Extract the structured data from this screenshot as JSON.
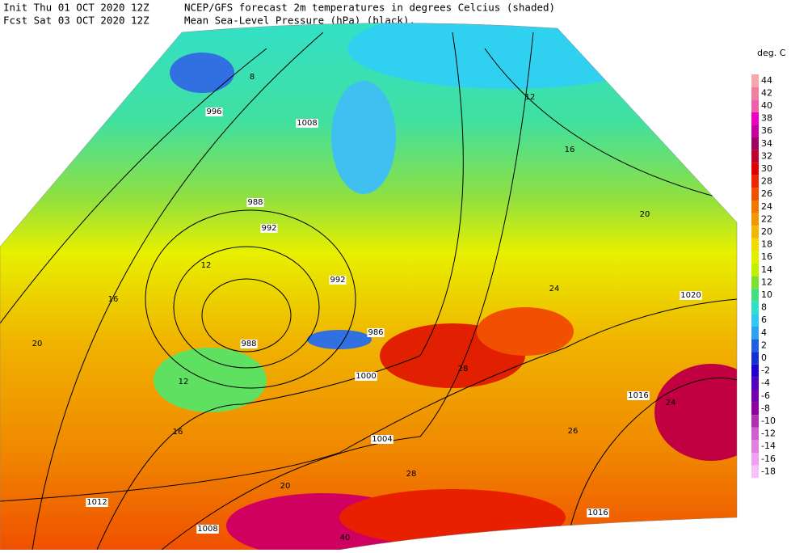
{
  "header": {
    "init": "Init  Thu 01 OCT 2020 12Z",
    "forecast": "Fcst Sat 03 OCT 2020 12Z",
    "title": "NCEP/GFS forecast 2m temperatures in degrees Celcius (shaded)",
    "subtitle": "Mean Sea-Level Pressure (hPa) (black)."
  },
  "legend": {
    "title": "deg. C",
    "entries": [
      {
        "value": 44,
        "color": "#f4a8a8"
      },
      {
        "value": 42,
        "color": "#f080a0"
      },
      {
        "value": 40,
        "color": "#f060a8"
      },
      {
        "value": 38,
        "color": "#f000c0"
      },
      {
        "value": 36,
        "color": "#c800a0"
      },
      {
        "value": 34,
        "color": "#a00060"
      },
      {
        "value": 32,
        "color": "#c00030"
      },
      {
        "value": 30,
        "color": "#e00000"
      },
      {
        "value": 28,
        "color": "#f02800"
      },
      {
        "value": 26,
        "color": "#f05000"
      },
      {
        "value": 24,
        "color": "#f07800"
      },
      {
        "value": 22,
        "color": "#f09800"
      },
      {
        "value": 20,
        "color": "#f0b800"
      },
      {
        "value": 18,
        "color": "#f0dc00"
      },
      {
        "value": 16,
        "color": "#e0f000"
      },
      {
        "value": 14,
        "color": "#c0f000"
      },
      {
        "value": 12,
        "color": "#80e030"
      },
      {
        "value": 10,
        "color": "#40e080"
      },
      {
        "value": 8,
        "color": "#30e0c8"
      },
      {
        "value": 6,
        "color": "#30c8f0"
      },
      {
        "value": 4,
        "color": "#30a0f0"
      },
      {
        "value": 2,
        "color": "#2060e0"
      },
      {
        "value": 0,
        "color": "#1030d0"
      },
      {
        "value": -2,
        "color": "#2000d0"
      },
      {
        "value": -4,
        "color": "#5000c0"
      },
      {
        "value": -6,
        "color": "#7000b0"
      },
      {
        "value": -8,
        "color": "#9000a0"
      },
      {
        "value": -10,
        "color": "#b030b0"
      },
      {
        "value": -12,
        "color": "#d060d0"
      },
      {
        "value": -14,
        "color": "#e080e0"
      },
      {
        "value": -16,
        "color": "#f0a0f0"
      },
      {
        "value": -18,
        "color": "#f8c0f8"
      }
    ]
  },
  "map_labels": [
    "996",
    "1008",
    "988",
    "992",
    "992",
    "988",
    "986",
    "1000",
    "1004",
    "1012",
    "1008",
    "1016",
    "1020",
    "1016",
    "8",
    "12",
    "16",
    "20",
    "24",
    "28",
    "12",
    "16",
    "20",
    "24",
    "26",
    "16",
    "20",
    "12",
    "28",
    "40"
  ]
}
